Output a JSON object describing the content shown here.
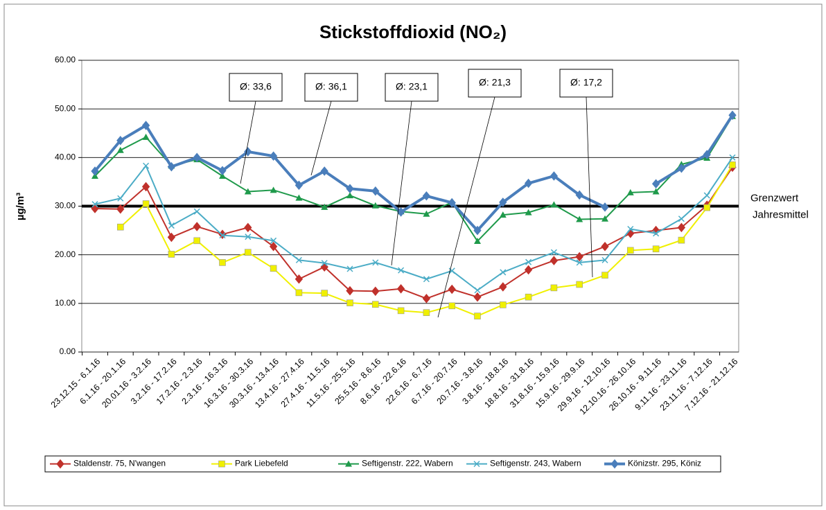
{
  "chart_data": {
    "type": "line",
    "title": "Stickstoffdioxid (NO₂)",
    "y_label": "µg/m³",
    "categories": [
      "23.12.15 - 6.1.16",
      "6.1.16 - 20.1.16",
      "20.01.16 - 3.2.16",
      "3.2.16 - 17.2.16",
      "17.2.16 - 2.3.16",
      "2.3.16 - 16.3.16",
      "16.3.16 - 30.3.16",
      "30.3.16 - 13.4.16",
      "13.4.16 - 27.4.16",
      "27.4.16 - 11.5.16",
      "11.5.16 - 25.5.16",
      "25.5.16 - 8.6.16",
      "8.6.16 - 22.6.16",
      "22.6.16 - 6.7.16",
      "6.7.16 - 20.7.16",
      "20.7.16 - 3.8.16",
      "3.8.16 - 18.8.16",
      "18.8.16 - 31.8.16",
      "31.8.16 - 15.9.16",
      "15.9.16 - 29.9.16",
      "29.9.16 - 12.10.16",
      "12.10.16 - 26.10.16",
      "26.10.16 - 9.11.16",
      "9.11.16 - 23.11.16",
      "23.11.16 - 7.12.16",
      "7.12.16 - 21.12.16"
    ],
    "series": [
      {
        "name": "Staldenstr. 75, N'wangen",
        "color": "#c0312b",
        "marker": "diamond",
        "values": [
          29.5,
          29.4,
          34.0,
          23.6,
          25.8,
          24.2,
          25.6,
          21.7,
          15.0,
          17.5,
          12.6,
          12.5,
          13.0,
          11.0,
          12.9,
          11.3,
          13.4,
          16.9,
          18.8,
          19.6,
          21.7,
          24.4,
          25.0,
          25.6,
          30.2,
          38.0
        ]
      },
      {
        "name": "Park Liebefeld",
        "color": "#f0f000",
        "marker": "square",
        "values": [
          null,
          25.7,
          30.5,
          20.1,
          22.9,
          18.4,
          20.5,
          17.2,
          12.2,
          12.1,
          10.1,
          9.8,
          8.5,
          8.1,
          9.5,
          7.4,
          9.7,
          11.3,
          13.2,
          13.9,
          15.8,
          20.9,
          21.2,
          23.0,
          29.7,
          38.5
        ]
      },
      {
        "name": "Seftigenstr. 222, Wabern",
        "color": "#1f9a4b",
        "marker": "triangle",
        "values": [
          36.2,
          41.5,
          44.2,
          38.3,
          39.6,
          36.2,
          33.0,
          33.3,
          31.7,
          29.8,
          32.2,
          30.1,
          28.9,
          28.4,
          30.8,
          22.8,
          28.2,
          28.7,
          30.3,
          27.3,
          27.4,
          32.8,
          33.0,
          38.6,
          39.9,
          48.5
        ]
      },
      {
        "name": "Seftigenstr. 243, Wabern",
        "color": "#4bacc6",
        "marker": "x",
        "values": [
          30.4,
          31.6,
          38.3,
          26.0,
          28.9,
          24.0,
          23.7,
          22.9,
          18.9,
          18.3,
          17.1,
          18.4,
          16.8,
          15.0,
          16.7,
          12.7,
          16.4,
          18.5,
          20.5,
          18.4,
          18.9,
          25.3,
          24.4,
          27.4,
          32.2,
          40.0
        ]
      },
      {
        "name": "Könizstr. 295, Köniz",
        "color": "#4a7ebb",
        "marker": "diamond",
        "width": 4,
        "values": [
          37.2,
          43.5,
          46.6,
          38.1,
          40.0,
          37.3,
          41.2,
          40.3,
          34.3,
          37.2,
          33.6,
          33.1,
          28.8,
          32.1,
          30.7,
          25.0,
          30.8,
          34.7,
          36.2,
          32.3,
          29.8,
          null,
          34.6,
          37.8,
          40.6,
          48.7
        ]
      }
    ],
    "ylim": [
      0,
      60
    ],
    "yticks": [
      {
        "value": 0,
        "label": "0.00"
      },
      {
        "value": 10,
        "label": "10.00"
      },
      {
        "value": 20,
        "label": "20.00"
      },
      {
        "value": 30,
        "label": "30.00"
      },
      {
        "value": 40,
        "label": "40.00"
      },
      {
        "value": 50,
        "label": "50.00"
      },
      {
        "value": 60,
        "label": "60.00"
      }
    ],
    "grid": true,
    "reference_line": {
      "value": 30,
      "label": [
        "Grenzwert",
        "Jahresmittel"
      ]
    },
    "annotations": [
      "Ø: 33,6",
      "Ø: 36,1",
      "Ø: 23,1",
      "Ø: 21,3",
      "Ø: 17,2"
    ],
    "legend": "bottom"
  }
}
